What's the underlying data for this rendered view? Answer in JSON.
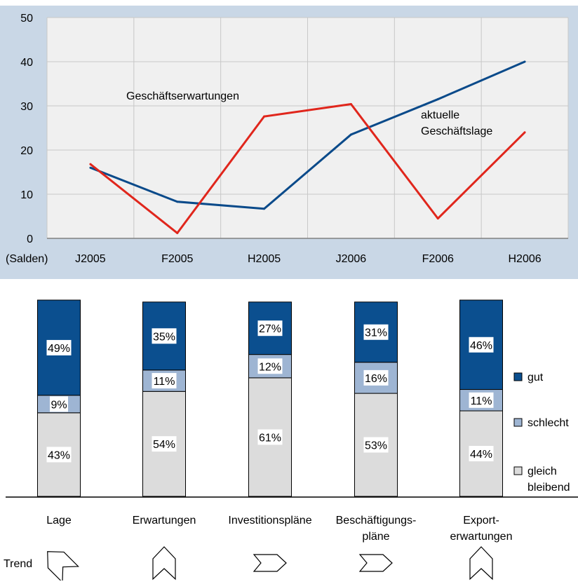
{
  "colors": {
    "panel_bg": "#c9d7e6",
    "plot_bg": "#f0f0f0",
    "grid": "#c8c8c8",
    "blue_series": "#0a4a8a",
    "red_series": "#e0261c",
    "gut": "#0b4f8f",
    "schlecht": "#9eb5d3",
    "gleich_bleibend": "#dcdcdc"
  },
  "chart_data": [
    {
      "type": "line",
      "y_unit_label": "(Salden)",
      "categories": [
        "J2005",
        "F2005",
        "H2005",
        "J2006",
        "F2006",
        "H2006"
      ],
      "y_ticks": [
        0,
        10,
        20,
        30,
        40,
        50
      ],
      "ylim": [
        0,
        50
      ],
      "grid": true,
      "series": [
        {
          "name": "aktuelle",
          "name_line2": "Geschäftslage",
          "color_key": "blue_series",
          "values": [
            16,
            8.3,
            6.7,
            23.5,
            31.5,
            40
          ]
        },
        {
          "name": "Geschäftserwartungen",
          "color_key": "red_series",
          "values": [
            16.8,
            1.2,
            27.6,
            30.4,
            4.5,
            24
          ]
        }
      ]
    },
    {
      "type": "bar",
      "stacked": true,
      "categories": [
        {
          "line1": "Lage",
          "line2": ""
        },
        {
          "line1": "Erwartungen",
          "line2": ""
        },
        {
          "line1": "Investitionspläne",
          "line2": ""
        },
        {
          "line1": "Beschäftigungs-",
          "line2": "pläne"
        },
        {
          "line1": "Export-",
          "line2": "erwartungen"
        }
      ],
      "series": [
        {
          "key": "gleich_bleibend",
          "name_line1": "gleich",
          "name_line2": "bleibend",
          "values": [
            43,
            54,
            61,
            53,
            44
          ],
          "labels": [
            "43%",
            "54%",
            "61%",
            "53%",
            "44%"
          ]
        },
        {
          "key": "schlecht",
          "name_line1": "schlecht",
          "name_line2": "",
          "values": [
            9,
            11,
            12,
            16,
            11
          ],
          "labels": [
            "9%",
            "11%",
            "12%",
            "16%",
            "11%"
          ]
        },
        {
          "key": "gut",
          "name_line1": "gut",
          "name_line2": "",
          "values": [
            49,
            35,
            27,
            31,
            46
          ],
          "labels": [
            "49%",
            "35%",
            "27%",
            "31%",
            "46%"
          ]
        }
      ],
      "legend_position": "right"
    }
  ],
  "trend": {
    "label": "Trend",
    "arrows": [
      "up-left",
      "up",
      "right",
      "right",
      "up"
    ]
  }
}
